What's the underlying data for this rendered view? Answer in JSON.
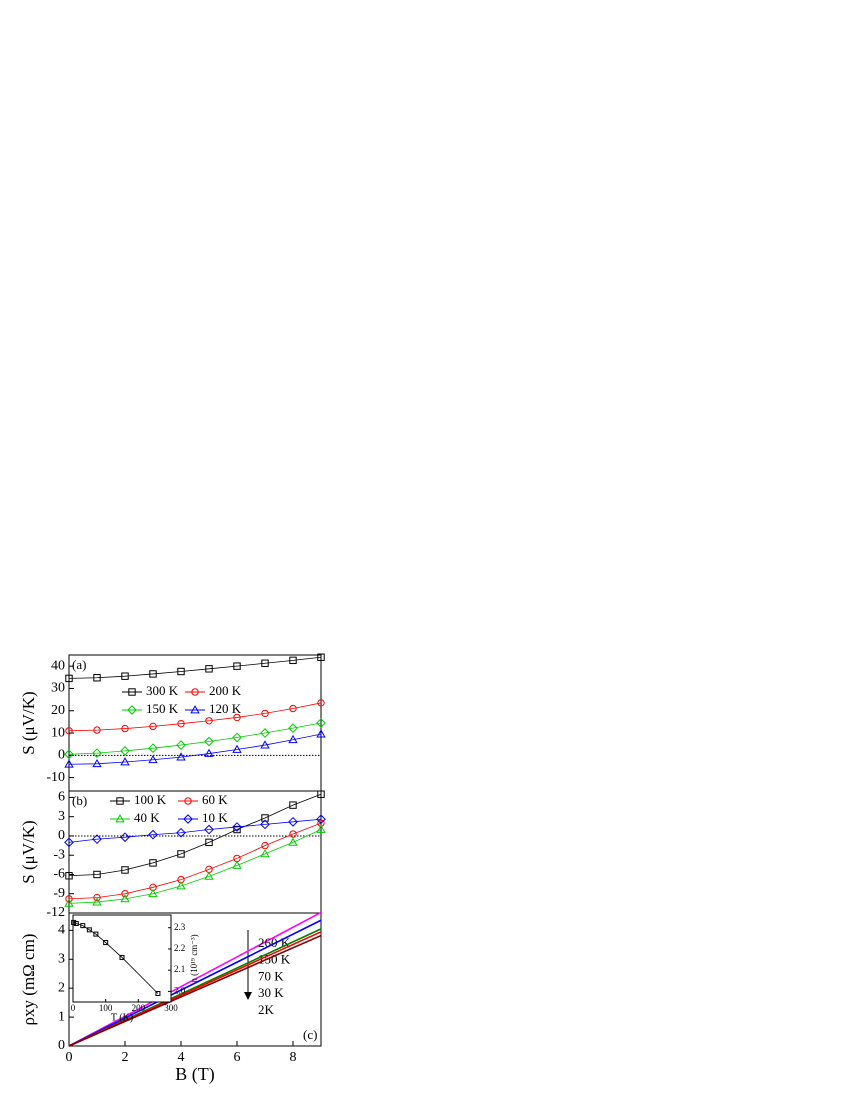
{
  "chart_data": [
    {
      "type": "line",
      "label": "(a)",
      "y_label": "S (μV/K)",
      "x": [
        0,
        1,
        2,
        3,
        4,
        5,
        6,
        7,
        8,
        9
      ],
      "xlim": [
        0,
        9
      ],
      "ylim": [
        -16,
        45
      ],
      "yticks": [
        40,
        30,
        20,
        10,
        0,
        -10
      ],
      "reference_line": 0,
      "series": [
        {
          "name": "300 K",
          "color": "#000000",
          "marker": "square",
          "values": [
            34.5,
            34.8,
            35.5,
            36.5,
            37.6,
            38.8,
            40,
            41.3,
            42.6,
            44
          ]
        },
        {
          "name": "200 K",
          "color": "#ff0000",
          "marker": "circle",
          "values": [
            11,
            11.3,
            12,
            13,
            14.2,
            15.5,
            17,
            18.8,
            21,
            23.5
          ]
        },
        {
          "name": "150 K",
          "color": "#00cc00",
          "marker": "diamond",
          "values": [
            0.5,
            1,
            2,
            3.2,
            4.6,
            6.2,
            8,
            10,
            12.2,
            14.5
          ]
        },
        {
          "name": "120 K",
          "color": "#0000ff",
          "marker": "triangle",
          "values": [
            -4,
            -3.8,
            -3,
            -2,
            -0.8,
            0.8,
            2.6,
            4.6,
            7,
            9.5
          ]
        }
      ]
    },
    {
      "type": "line",
      "label": "(b)",
      "y_label": "S (μV/K)",
      "x": [
        0,
        1,
        2,
        3,
        4,
        5,
        6,
        7,
        8,
        9
      ],
      "xlim": [
        0,
        9
      ],
      "ylim": [
        -12,
        7
      ],
      "yticks": [
        6,
        3,
        0,
        -3,
        -6,
        -9,
        -12
      ],
      "reference_line": 0,
      "series": [
        {
          "name": "100 K",
          "color": "#000000",
          "marker": "square",
          "values": [
            -6.2,
            -6,
            -5.3,
            -4.2,
            -2.8,
            -1,
            1,
            2.8,
            4.8,
            6.5
          ]
        },
        {
          "name": "60 K",
          "color": "#ff0000",
          "marker": "circle",
          "values": [
            -9.8,
            -9.6,
            -9,
            -8,
            -6.8,
            -5.2,
            -3.5,
            -1.5,
            0.3,
            2
          ]
        },
        {
          "name": "40 K",
          "color": "#00cc00",
          "marker": "triangle",
          "values": [
            -10.5,
            -10.3,
            -9.8,
            -9,
            -7.8,
            -6.3,
            -4.6,
            -2.8,
            -1,
            1
          ]
        },
        {
          "name": "10 K",
          "color": "#0000ff",
          "marker": "diamond",
          "values": [
            -1,
            -0.5,
            -0.2,
            0.2,
            0.5,
            1,
            1.4,
            1.8,
            2.2,
            2.6
          ]
        }
      ]
    },
    {
      "type": "line",
      "label": "(c)",
      "y_label": "ρxy (mΩ cm)",
      "x_label": "B (T)",
      "x": [
        0,
        9
      ],
      "xlim": [
        0,
        9
      ],
      "xticks": [
        0,
        2,
        4,
        6,
        8
      ],
      "ylim": [
        0,
        4.6
      ],
      "yticks": [
        0,
        1,
        2,
        3,
        4
      ],
      "series": [
        {
          "name": "260 K",
          "color": "#ff00ff",
          "values": [
            0,
            4.62
          ]
        },
        {
          "name": "150 K",
          "color": "#0000ff",
          "values": [
            0,
            4.35
          ]
        },
        {
          "name": "70 K",
          "color": "#008000",
          "values": [
            0,
            4.05
          ]
        },
        {
          "name": "30 K",
          "color": "#ff0000",
          "values": [
            0,
            3.95
          ]
        },
        {
          "name": "2K",
          "color": "#800000",
          "values": [
            0,
            3.82
          ]
        }
      ]
    },
    {
      "type": "line",
      "x_label": "T (K)",
      "y_label": "n (10¹⁹ cm⁻³)",
      "y_axis_side": "right",
      "x": [
        2,
        10,
        30,
        50,
        70,
        100,
        150,
        260
      ],
      "xlim": [
        0,
        300
      ],
      "xticks": [
        0,
        100,
        200,
        300
      ],
      "ylim": [
        1.95,
        2.36
      ],
      "yticks": [
        {
          "value": 2,
          "label": "2.0"
        },
        2.1,
        2.2,
        2.3
      ],
      "series": [
        {
          "color": "#000000",
          "marker": "square",
          "values": [
            2.325,
            2.32,
            2.31,
            2.29,
            2.27,
            2.23,
            2.16,
            1.99
          ]
        }
      ]
    }
  ]
}
